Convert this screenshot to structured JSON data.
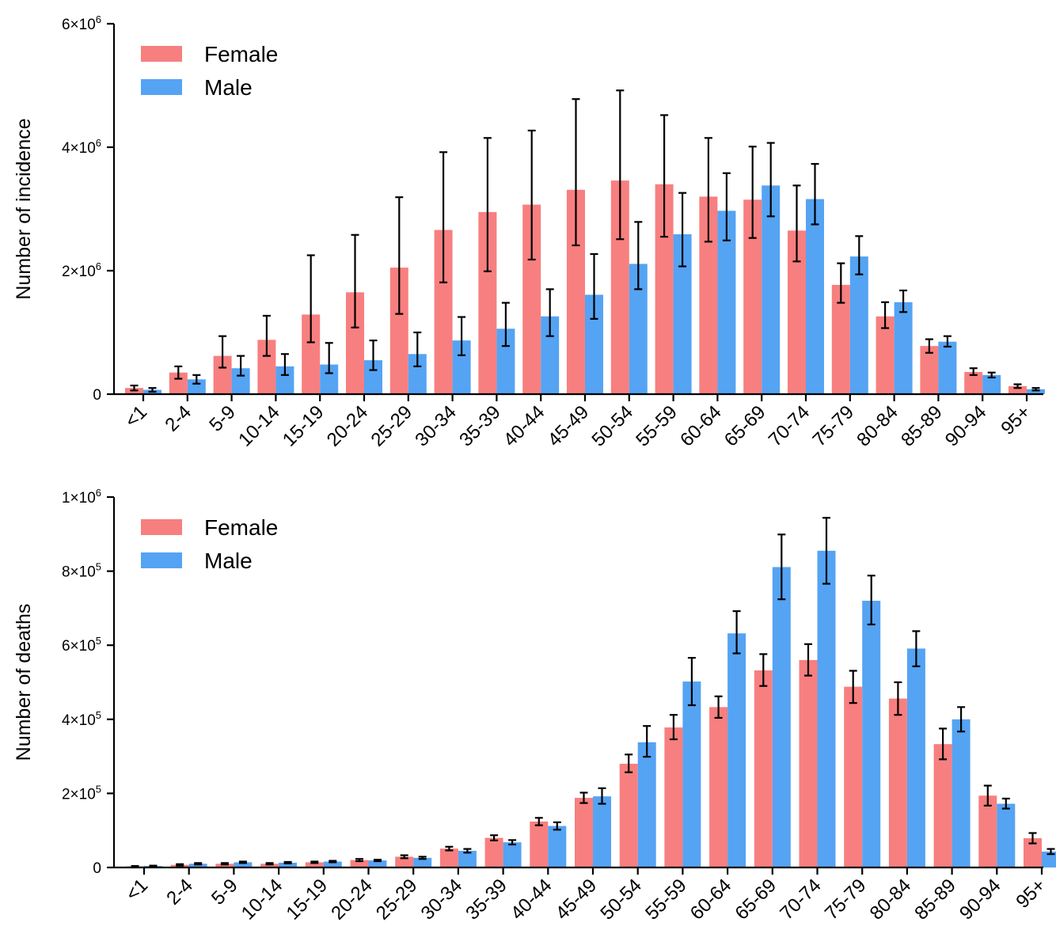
{
  "colors": {
    "female": "#f87f7f",
    "male": "#55a3f3"
  },
  "chart_data": [
    {
      "type": "bar",
      "xlabel": "",
      "ylabel": "Number of incidence",
      "ylim": [
        0,
        6000000
      ],
      "y_tick_values": [
        0,
        2000000,
        4000000,
        6000000
      ],
      "y_tick_labels": [
        {
          "base": "0",
          "exp": ""
        },
        {
          "base": "2×10",
          "exp": "6"
        },
        {
          "base": "4×10",
          "exp": "6"
        },
        {
          "base": "6×10",
          "exp": "6"
        }
      ],
      "legend_position": "top-left",
      "categories": [
        "<1",
        "2-4",
        "5-9",
        "10-14",
        "15-19",
        "20-24",
        "25-29",
        "30-34",
        "35-39",
        "40-44",
        "45-49",
        "50-54",
        "55-59",
        "60-64",
        "65-69",
        "70-74",
        "75-79",
        "80-84",
        "85-89",
        "90-94",
        "95+"
      ],
      "series": [
        {
          "name": "Female",
          "values": [
            100000,
            350000,
            620000,
            880000,
            1290000,
            1650000,
            2050000,
            2660000,
            2950000,
            3070000,
            3310000,
            3460000,
            3400000,
            3200000,
            3150000,
            2650000,
            1770000,
            1260000,
            780000,
            360000,
            130000
          ],
          "err_low": [
            60000,
            250000,
            430000,
            620000,
            840000,
            1080000,
            1300000,
            1810000,
            1990000,
            2180000,
            2410000,
            2510000,
            2550000,
            2470000,
            2530000,
            2150000,
            1480000,
            1070000,
            670000,
            310000,
            100000
          ],
          "err_high": [
            140000,
            450000,
            940000,
            1270000,
            2250000,
            2580000,
            3190000,
            3920000,
            4150000,
            4270000,
            4780000,
            4920000,
            4520000,
            4150000,
            4010000,
            3380000,
            2120000,
            1490000,
            890000,
            420000,
            160000
          ]
        },
        {
          "name": "Male",
          "values": [
            70000,
            240000,
            420000,
            450000,
            480000,
            550000,
            650000,
            870000,
            1060000,
            1260000,
            1610000,
            2110000,
            2590000,
            2970000,
            3380000,
            3160000,
            2230000,
            1490000,
            850000,
            310000,
            80000
          ],
          "err_low": [
            40000,
            170000,
            300000,
            310000,
            340000,
            390000,
            450000,
            630000,
            780000,
            940000,
            1220000,
            1700000,
            2070000,
            2490000,
            2880000,
            2750000,
            1940000,
            1330000,
            770000,
            270000,
            60000
          ],
          "err_high": [
            100000,
            310000,
            620000,
            650000,
            830000,
            870000,
            1000000,
            1250000,
            1480000,
            1700000,
            2270000,
            2790000,
            3260000,
            3580000,
            4070000,
            3730000,
            2560000,
            1680000,
            940000,
            350000,
            100000
          ]
        }
      ]
    },
    {
      "type": "bar",
      "xlabel": "",
      "ylabel": "Number of deaths",
      "ylim": [
        0,
        1000000
      ],
      "y_tick_values": [
        0,
        200000,
        400000,
        600000,
        800000,
        1000000
      ],
      "y_tick_labels": [
        {
          "base": "0",
          "exp": ""
        },
        {
          "base": "2×10",
          "exp": "5"
        },
        {
          "base": "4×10",
          "exp": "5"
        },
        {
          "base": "6×10",
          "exp": "5"
        },
        {
          "base": "8×10",
          "exp": "5"
        },
        {
          "base": "1×10",
          "exp": "6"
        }
      ],
      "legend_position": "top-left",
      "categories": [
        "<1",
        "2-4",
        "5-9",
        "10-14",
        "15-19",
        "20-24",
        "25-29",
        "30-34",
        "35-39",
        "40-44",
        "45-49",
        "50-54",
        "55-59",
        "60-64",
        "65-69",
        "70-74",
        "75-79",
        "80-84",
        "85-89",
        "90-94",
        "95+"
      ],
      "series": [
        {
          "name": "Female",
          "values": [
            3000,
            7000,
            10000,
            10000,
            14000,
            20000,
            29000,
            51000,
            80000,
            124000,
            188000,
            280000,
            378000,
            433000,
            532000,
            560000,
            488000,
            456000,
            333000,
            194000,
            79000
          ],
          "err_low": [
            2000,
            5000,
            8000,
            8000,
            12000,
            17000,
            25000,
            46000,
            73000,
            114000,
            174000,
            257000,
            346000,
            404000,
            490000,
            518000,
            444000,
            412000,
            292000,
            167000,
            65000
          ],
          "err_high": [
            4000,
            9000,
            12000,
            12000,
            16000,
            23000,
            33000,
            56000,
            87000,
            134000,
            202000,
            305000,
            412000,
            462000,
            576000,
            603000,
            531000,
            500000,
            375000,
            221000,
            93000
          ]
        },
        {
          "name": "Male",
          "values": [
            4000,
            10000,
            14000,
            13000,
            16000,
            19000,
            26000,
            45000,
            68000,
            112000,
            192000,
            338000,
            502000,
            632000,
            811000,
            855000,
            720000,
            591000,
            400000,
            172000,
            43000
          ],
          "err_low": [
            3000,
            8000,
            12000,
            11000,
            14000,
            17000,
            23000,
            40000,
            62000,
            102000,
            172000,
            299000,
            438000,
            578000,
            724000,
            766000,
            656000,
            543000,
            367000,
            159000,
            36000
          ],
          "err_high": [
            5000,
            12000,
            16000,
            15000,
            18000,
            21000,
            29000,
            50000,
            74000,
            122000,
            214000,
            382000,
            566000,
            692000,
            899000,
            944000,
            788000,
            638000,
            433000,
            186000,
            50000
          ]
        }
      ]
    }
  ]
}
